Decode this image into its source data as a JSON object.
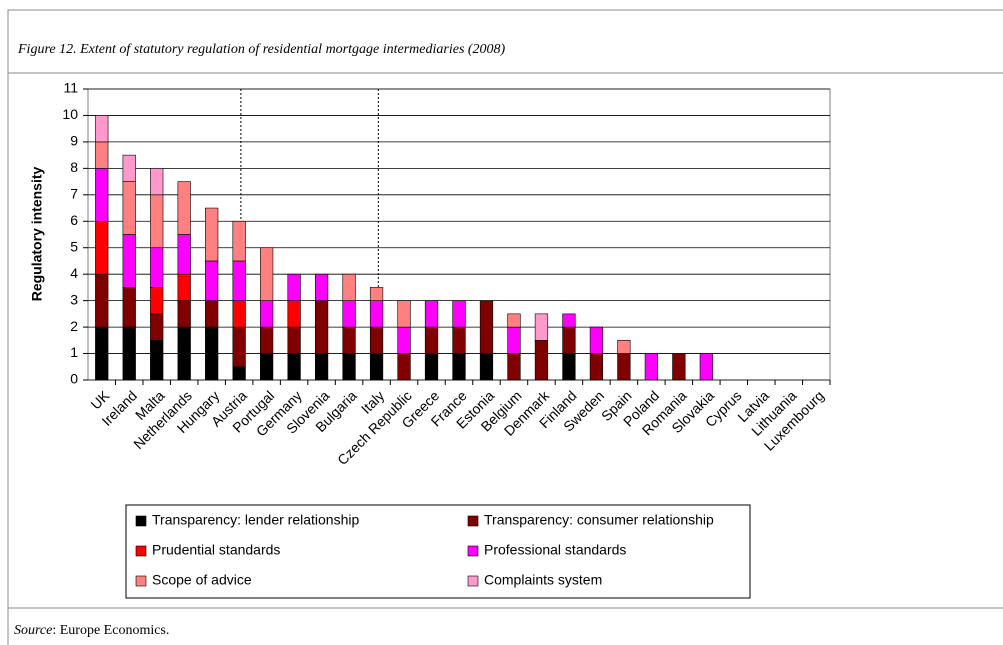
{
  "chart_data": {
    "type": "stacked_bar",
    "title": "Figure 12. Extent of statutory regulation of residential mortgage intermediaries (2008)",
    "y_label": "Regulatory intensity",
    "categories": [
      "UK",
      "Ireland",
      "Malta",
      "Netherlands",
      "Hungary",
      "Austria",
      "Portugal",
      "Germany",
      "Slovenia",
      "Bulgaria",
      "Italy",
      "Czech Republic",
      "Greece",
      "France",
      "Estonia",
      "Belgium",
      "Denmark",
      "Finland",
      "Sweden",
      "Spain",
      "Poland",
      "Romania",
      "Slovakia",
      "Cyprus",
      "Latvia",
      "Lithuania",
      "Luxembourg"
    ],
    "series": [
      {
        "name": "Transparency: lender relationship",
        "color": "#000000",
        "values": [
          2,
          2,
          1.5,
          2,
          2,
          0.5,
          1,
          1,
          1,
          1,
          1,
          0,
          1,
          1,
          1,
          0,
          0,
          1,
          0,
          0,
          0,
          0,
          0,
          0,
          0,
          0,
          0
        ]
      },
      {
        "name": "Transparency: consumer relationship",
        "color": "#800000",
        "values": [
          2,
          1.5,
          1,
          1,
          1,
          1.5,
          1,
          1,
          2,
          1,
          1,
          1,
          1,
          1,
          2,
          1,
          1.5,
          1,
          1,
          1,
          0,
          1,
          0,
          0,
          0,
          0,
          0
        ]
      },
      {
        "name": "Prudential standards",
        "color": "#ff0000",
        "values": [
          2,
          0,
          1,
          1,
          0,
          1,
          0,
          1,
          0,
          0,
          0,
          0,
          0,
          0,
          0,
          0,
          0,
          0,
          0,
          0,
          0,
          0,
          0,
          0,
          0,
          0,
          0
        ]
      },
      {
        "name": "Professional standards",
        "color": "#ff00ff",
        "values": [
          2,
          2,
          1.5,
          1.5,
          1.5,
          1.5,
          1,
          1,
          1,
          1,
          1,
          1,
          1,
          1,
          0,
          1,
          0,
          0.5,
          1,
          0,
          1,
          0,
          1,
          0,
          0,
          0,
          0
        ]
      },
      {
        "name": "Scope of advice",
        "color": "#ff8080",
        "values": [
          1,
          2,
          2,
          2,
          2,
          1.5,
          2,
          0,
          0,
          1,
          0.5,
          1,
          0,
          0,
          0,
          0.5,
          0,
          0,
          0,
          0.5,
          0,
          0,
          0,
          0,
          0,
          0,
          0
        ]
      },
      {
        "name": "Complaints system",
        "color": "#ff99cc",
        "values": [
          1,
          1,
          1,
          0,
          0,
          0,
          0,
          0,
          0,
          0,
          0,
          0,
          0,
          0,
          0,
          0,
          1,
          0,
          0,
          0,
          0,
          0,
          0,
          0,
          0,
          0,
          0
        ]
      }
    ],
    "ylim": [
      0,
      11
    ],
    "yticks": [
      0,
      1,
      2,
      3,
      4,
      5,
      6,
      7,
      8,
      9,
      10,
      11
    ],
    "grid": true
  },
  "source": {
    "label": "Source",
    "text": ": Europe Economics."
  }
}
